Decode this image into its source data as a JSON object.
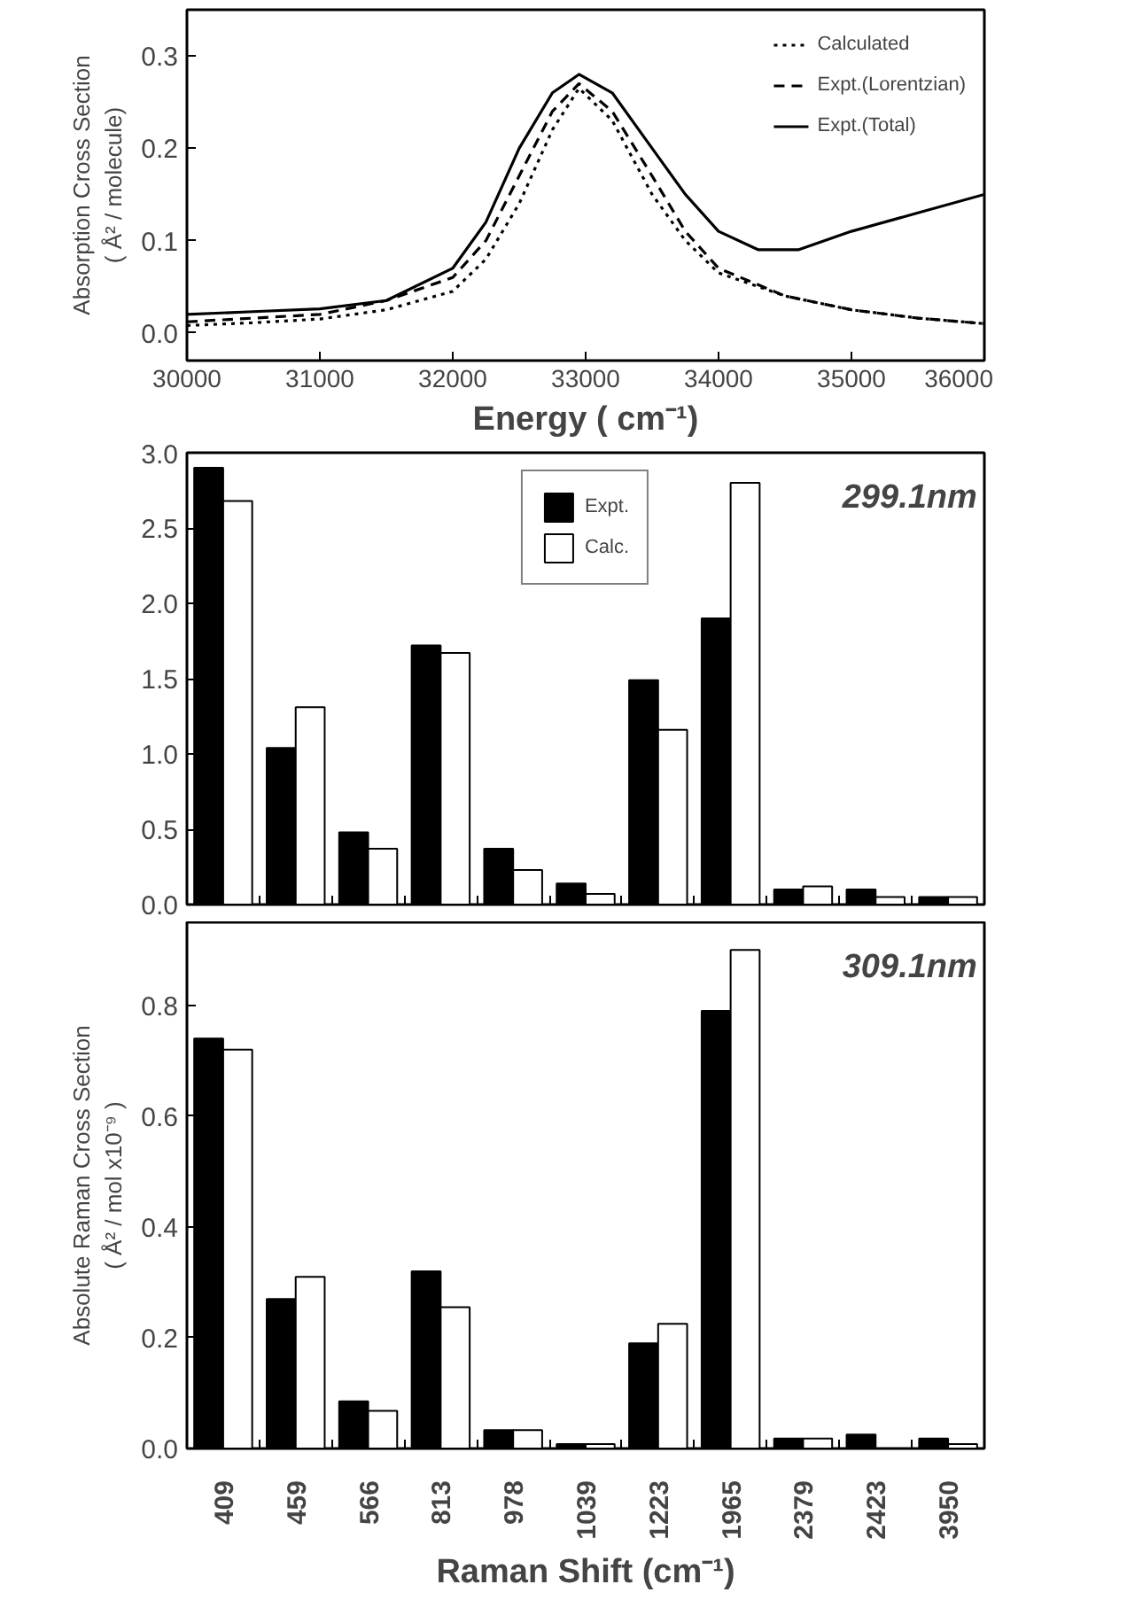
{
  "chart_data": [
    {
      "type": "line",
      "xlabel": "Energy ( cm⁻¹)",
      "ylabel": "Absorption Cross Section\n( Å² / molecule)",
      "xlim": [
        30000,
        36000
      ],
      "ylim": [
        -0.03,
        0.35
      ],
      "xticks": [
        30000,
        31000,
        32000,
        33000,
        34000,
        35000,
        36000
      ],
      "yticks": [
        {
          "value": 0.0,
          "label": "0.0"
        },
        0.1,
        0.2,
        0.3
      ],
      "legend": "top right",
      "grid": false,
      "marker": "none",
      "series": [
        {
          "name": "Calculated",
          "color": "#000000",
          "line_style": "dotted",
          "x": [
            30000,
            30500,
            31000,
            31500,
            32000,
            32250,
            32500,
            32750,
            32950,
            33200,
            33500,
            33750,
            34000,
            34500,
            35000,
            35500,
            36000
          ],
          "values": [
            0.008,
            0.011,
            0.015,
            0.025,
            0.045,
            0.08,
            0.14,
            0.22,
            0.265,
            0.23,
            0.15,
            0.1,
            0.065,
            0.04,
            0.025,
            0.016,
            0.01
          ]
        },
        {
          "name": "Expt.(Lorentzian)",
          "color": "#000000",
          "line_style": "dashed",
          "x": [
            30000,
            30500,
            31000,
            31500,
            32000,
            32250,
            32500,
            32750,
            32950,
            33200,
            33500,
            33750,
            34000,
            34500,
            35000,
            35500,
            36000
          ],
          "values": [
            0.012,
            0.016,
            0.02,
            0.035,
            0.06,
            0.1,
            0.17,
            0.24,
            0.27,
            0.24,
            0.17,
            0.11,
            0.07,
            0.04,
            0.025,
            0.016,
            0.01
          ]
        },
        {
          "name": "Expt.(Total)",
          "color": "#000000",
          "line_style": "solid",
          "x": [
            30000,
            30500,
            31000,
            31500,
            32000,
            32250,
            32500,
            32750,
            32950,
            33200,
            33500,
            33750,
            34000,
            34300,
            34600,
            35000,
            35500,
            36000
          ],
          "values": [
            0.02,
            0.023,
            0.026,
            0.035,
            0.07,
            0.12,
            0.2,
            0.26,
            0.28,
            0.26,
            0.2,
            0.15,
            0.11,
            0.09,
            0.09,
            0.11,
            0.13,
            0.15
          ]
        }
      ]
    },
    {
      "type": "bar",
      "categories": [
        "409",
        "459",
        "566",
        "813",
        "978",
        "1039",
        "1223",
        "1965",
        "2379",
        "2423",
        "3950"
      ],
      "ylim": [
        0,
        3.0
      ],
      "yticks": [
        {
          "value": 0,
          "label": "0.0"
        },
        0.5,
        {
          "value": 1,
          "label": "1.0"
        },
        1.5,
        {
          "value": 2,
          "label": "2.0"
        },
        2.5,
        {
          "value": 3,
          "label": "3.0"
        }
      ],
      "tick_labels": "y",
      "legend": "top",
      "grid": false,
      "annotations": [
        "299.1nm"
      ],
      "series": [
        {
          "name": "Expt.",
          "color": "#000000",
          "values": [
            2.9,
            1.04,
            0.48,
            1.72,
            0.37,
            0.14,
            1.49,
            1.9,
            0.1,
            0.1,
            0.05
          ]
        },
        {
          "name": "Calc.",
          "color": "#ffffff",
          "values": [
            2.68,
            1.31,
            0.37,
            1.67,
            0.23,
            0.07,
            1.16,
            2.8,
            0.12,
            0.05,
            0.05
          ]
        }
      ]
    },
    {
      "type": "bar",
      "categories": [
        "409",
        "459",
        "566",
        "813",
        "978",
        "1039",
        "1223",
        "1965",
        "2379",
        "2423",
        "3950"
      ],
      "xlabel": "Raman Shift (cm⁻¹)",
      "ylabel": "Absolute Raman Cross Section\n( Å² / mol x10⁻⁹ )",
      "ylim": [
        0,
        0.95
      ],
      "yticks": [
        {
          "value": 0,
          "label": "0.0"
        },
        0.2,
        0.4,
        0.6,
        0.8
      ],
      "grid": false,
      "annotations": [
        "309.1nm"
      ],
      "series": [
        {
          "color": "#000000",
          "values": [
            0.74,
            0.27,
            0.085,
            0.32,
            0.033,
            0.008,
            0.19,
            0.79,
            0.018,
            0.025,
            0.018
          ]
        },
        {
          "color": "#ffffff",
          "values": [
            0.72,
            0.31,
            0.068,
            0.255,
            0.033,
            0.008,
            0.225,
            0.9,
            0.018,
            null,
            0.008
          ]
        }
      ]
    }
  ]
}
